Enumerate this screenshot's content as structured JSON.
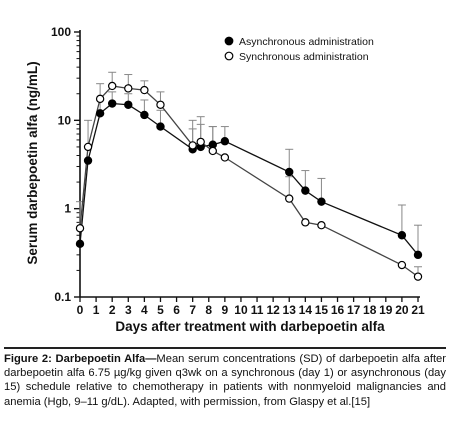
{
  "chart_data": {
    "type": "line",
    "title": "",
    "xlabel": "Days after treatment with darbepoetin alfa",
    "ylabel": "Serum darbepoetin alfa (ng/mL)",
    "yscale": "log",
    "xlim": [
      0,
      21
    ],
    "ylim": [
      0.1,
      100
    ],
    "x_ticks": [
      0,
      1,
      2,
      3,
      4,
      5,
      6,
      7,
      8,
      9,
      10,
      11,
      12,
      13,
      14,
      15,
      16,
      17,
      18,
      19,
      20,
      21
    ],
    "y_ticks": [
      0.1,
      1,
      10,
      100
    ],
    "y_tick_labels": [
      "0.1",
      "1",
      "10",
      "100"
    ],
    "legend_position": "top-right",
    "series": [
      {
        "name": "Asynchronous administration",
        "marker": "filled-circle",
        "color": "#000000",
        "x": [
          0,
          0.5,
          1.25,
          2,
          3,
          4,
          5,
          7,
          7.5,
          8.25,
          9,
          13,
          14,
          15,
          20,
          21
        ],
        "y": [
          0.4,
          3.5,
          12,
          15.5,
          15,
          11.5,
          8.5,
          4.7,
          5,
          5.3,
          5.8,
          2.6,
          1.6,
          1.2,
          0.5,
          0.3
        ],
        "sd_upper": [
          null,
          null,
          17,
          21,
          20,
          17,
          13,
          8,
          9,
          8.5,
          8.5,
          4.7,
          2.7,
          2.2,
          1.1,
          0.65
        ]
      },
      {
        "name": "Synchronous administration",
        "marker": "open-circle",
        "color": "#ffffff",
        "x": [
          0,
          0.5,
          1.25,
          2,
          3,
          4,
          5,
          7,
          7.5,
          8.25,
          9,
          13,
          14,
          15,
          20,
          21
        ],
        "y": [
          0.6,
          5,
          17.5,
          24.5,
          23,
          22,
          15,
          5.2,
          5.7,
          4.5,
          3.8,
          1.3,
          0.7,
          0.65,
          0.23,
          0.17
        ],
        "sd_upper": [
          1.2,
          10,
          26,
          35,
          33,
          28,
          21,
          10,
          11,
          8.5,
          null,
          2.3,
          null,
          null,
          null,
          0.22
        ]
      }
    ]
  },
  "caption": {
    "lead": "Figure 2: Darbepoetin Alfa—",
    "body": "Mean serum concentrations (SD) of darbepoetin alfa after darbepoetin alfa 6.75 µg/kg given q3wk on a synchronous (day 1) or asynchronous (day 15) schedule relative to chemotherapy in patients with nonmyeloid malignancies and anemia (Hgb, 9–11 g/dL). Adapted, with permission, from Glaspy et al.[15]"
  }
}
